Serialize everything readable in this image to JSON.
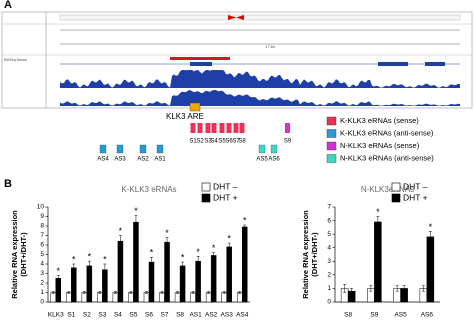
{
  "panel_a": {
    "label": "A",
    "track_names": [
      "RefSeq Genes"
    ],
    "scale_label": "17 kb",
    "are_label": "KLK3 ARE",
    "sense_labels": [
      "S1",
      "S2",
      "S3",
      "S4",
      "S5",
      "S6",
      "S7",
      "S8"
    ],
    "s9_label": "S9",
    "antisense_labels": [
      "AS4",
      "AS3",
      "AS2",
      "AS1"
    ],
    "n_antisense_labels": [
      "AS5",
      "AS6"
    ],
    "legend": [
      {
        "label": "K-KLK3 eRNAs (sense)",
        "color": "#e8325a"
      },
      {
        "label": "K-KLK3 eRNAs (anti-sense)",
        "color": "#2a9ad6"
      },
      {
        "label": "N-KLK3 eRNAs (sense)",
        "color": "#d42fd4"
      },
      {
        "label": "N-KLK3 eRNAs (anti-sense)",
        "color": "#3fd6c4"
      }
    ]
  },
  "panel_b_label": "B",
  "chart_data": [
    {
      "type": "bar",
      "title": "K-KLK3 eRNAs",
      "y_label_lines": [
        "Relative  RNA expression",
        "(DHT+/DHT-)"
      ],
      "categories": [
        "KLK3",
        "S1",
        "S2",
        "S3",
        "S4",
        "S5",
        "S6",
        "S7",
        "S8",
        "AS1",
        "AS2",
        "AS3",
        "AS4"
      ],
      "series": [
        {
          "name": "DHT –",
          "color": "#ffffff",
          "values": [
            1,
            1,
            1,
            1,
            1,
            1,
            1,
            1,
            1,
            1,
            1,
            1,
            1
          ],
          "errors": [
            0.1,
            0.1,
            0.1,
            0.1,
            0.1,
            0.1,
            0.1,
            0.1,
            0.1,
            0.1,
            0.1,
            0.1,
            0.1
          ]
        },
        {
          "name": "DHT +",
          "color": "#000000",
          "values": [
            2.5,
            3.6,
            3.8,
            3.4,
            6.4,
            8.4,
            4.2,
            6.3,
            3.8,
            4.3,
            4.9,
            5.8,
            7.9
          ],
          "errors": [
            0.3,
            0.4,
            0.5,
            0.6,
            0.6,
            0.7,
            0.5,
            0.5,
            0.4,
            0.5,
            0.3,
            0.4,
            0.2
          ]
        }
      ],
      "annotations": [
        "*",
        "*",
        "*",
        "*",
        "*",
        "*",
        "*",
        "*",
        "*",
        "*",
        "*",
        "*",
        "*"
      ],
      "ylim": [
        0,
        10
      ],
      "yticks": [
        0,
        1,
        2,
        3,
        4,
        5,
        6,
        7,
        8,
        9,
        10
      ],
      "legend": "upper right"
    },
    {
      "type": "bar",
      "title": "N-KLK3eRNAs",
      "y_label_lines": [
        "Relative  RNA expression",
        "(DHT+/DHT-)"
      ],
      "categories": [
        "S8",
        "S9",
        "AS5",
        "AS6"
      ],
      "series": [
        {
          "name": "DHT –",
          "color": "#ffffff",
          "values": [
            1,
            1,
            1,
            1
          ],
          "errors": [
            0.3,
            0.2,
            0.2,
            0.2
          ]
        },
        {
          "name": "DHT +",
          "color": "#000000",
          "values": [
            0.8,
            5.9,
            1.0,
            4.8
          ],
          "errors": [
            0.2,
            0.4,
            0.2,
            0.4
          ]
        }
      ],
      "annotations": [
        null,
        "*",
        null,
        "*"
      ],
      "ylim": [
        0,
        7
      ],
      "yticks": [
        0,
        1,
        2,
        3,
        4,
        5,
        6,
        7
      ],
      "legend": "upper right"
    }
  ]
}
